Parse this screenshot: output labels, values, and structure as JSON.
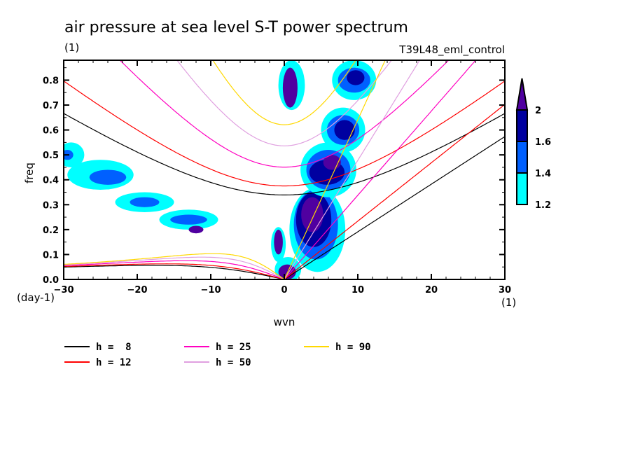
{
  "chart_data": {
    "type": "heatmap",
    "title": "air pressure at sea level S-T power spectrum",
    "units_label": "(1)",
    "run_label": "T39L48_eml_control",
    "xlabel": "wvn",
    "ylabel": "freq",
    "x_units": "(1)",
    "y_units": "(day-1)",
    "xlim": [
      -30,
      30
    ],
    "ylim": [
      0.0,
      0.88
    ],
    "xticks": [
      -30,
      -20,
      -10,
      0,
      10,
      20,
      30
    ],
    "xtick_labels": [
      "-30",
      "-20",
      "-10",
      "0",
      "10",
      "20",
      "30"
    ],
    "yticks": [
      0.0,
      0.1,
      0.2,
      0.3,
      0.4,
      0.5,
      0.6,
      0.7,
      0.8
    ],
    "ytick_labels": [
      "0.0",
      "0.1",
      "0.2",
      "0.3",
      "0.4",
      "0.5",
      "0.6",
      "0.7",
      "0.8"
    ],
    "colorbar": {
      "levels": [
        1.2,
        1.4,
        1.6,
        2
      ],
      "labels": [
        "1.2",
        "1.4",
        "1.6",
        "2"
      ],
      "colors": [
        "#00ffff",
        "#0060ff",
        "#0000a0",
        "#5000a0"
      ],
      "extend": "max"
    },
    "dispersion_curves": [
      {
        "name": "h =  8",
        "h": 8,
        "color": "#000000"
      },
      {
        "name": "h = 12",
        "h": 12,
        "color": "#ff0000"
      },
      {
        "name": "h = 25",
        "h": 25,
        "color": "#ff00c0"
      },
      {
        "name": "h = 50",
        "h": 50,
        "color": "#e0a0e0"
      },
      {
        "name": "h = 90",
        "h": 90,
        "color": "#ffd800"
      }
    ],
    "legend_placement": "bottom",
    "contour_regions": [
      {
        "level": 1.2,
        "x": 1.0,
        "y": 0.78,
        "rx": 1.8,
        "ry": 0.1
      },
      {
        "level": 2,
        "x": 0.8,
        "y": 0.77,
        "rx": 1.0,
        "ry": 0.08
      },
      {
        "level": 1.2,
        "x": 4.5,
        "y": 0.2,
        "rx": 3.8,
        "ry": 0.17
      },
      {
        "level": 1.4,
        "x": 4.3,
        "y": 0.22,
        "rx": 3.0,
        "ry": 0.14
      },
      {
        "level": 1.6,
        "x": 4.0,
        "y": 0.24,
        "rx": 2.4,
        "ry": 0.11
      },
      {
        "level": 2,
        "x": 3.8,
        "y": 0.26,
        "rx": 1.5,
        "ry": 0.07
      },
      {
        "level": 1.2,
        "x": 6.0,
        "y": 0.44,
        "rx": 3.8,
        "ry": 0.11
      },
      {
        "level": 1.4,
        "x": 6.0,
        "y": 0.44,
        "rx": 3.0,
        "ry": 0.08
      },
      {
        "level": 1.6,
        "x": 5.8,
        "y": 0.43,
        "rx": 2.4,
        "ry": 0.05
      },
      {
        "level": 2,
        "x": 6.5,
        "y": 0.47,
        "rx": 1.2,
        "ry": 0.03
      },
      {
        "level": 1.2,
        "x": 8.0,
        "y": 0.6,
        "rx": 3.0,
        "ry": 0.09
      },
      {
        "level": 1.4,
        "x": 8.0,
        "y": 0.6,
        "rx": 2.2,
        "ry": 0.06
      },
      {
        "level": 1.6,
        "x": 8.2,
        "y": 0.6,
        "rx": 1.4,
        "ry": 0.04
      },
      {
        "level": 1.2,
        "x": 9.5,
        "y": 0.8,
        "rx": 3.0,
        "ry": 0.08
      },
      {
        "level": 1.4,
        "x": 9.5,
        "y": 0.8,
        "rx": 2.2,
        "ry": 0.05
      },
      {
        "level": 1.6,
        "x": 9.7,
        "y": 0.81,
        "rx": 1.2,
        "ry": 0.03
      },
      {
        "level": 1.2,
        "x": 0.5,
        "y": 0.04,
        "rx": 1.8,
        "ry": 0.05
      },
      {
        "level": 2,
        "x": 0.4,
        "y": 0.03,
        "rx": 1.2,
        "ry": 0.03
      },
      {
        "level": 1.2,
        "x": -0.8,
        "y": 0.14,
        "rx": 1.0,
        "ry": 0.07
      },
      {
        "level": 2,
        "x": -0.8,
        "y": 0.15,
        "rx": 0.6,
        "ry": 0.05
      },
      {
        "level": 1.2,
        "x": -25,
        "y": 0.42,
        "rx": 4.5,
        "ry": 0.06
      },
      {
        "level": 1.4,
        "x": -24,
        "y": 0.41,
        "rx": 2.5,
        "ry": 0.03
      },
      {
        "level": 1.2,
        "x": -19,
        "y": 0.31,
        "rx": 4.0,
        "ry": 0.04
      },
      {
        "level": 1.4,
        "x": -19,
        "y": 0.31,
        "rx": 2.0,
        "ry": 0.02
      },
      {
        "level": 1.2,
        "x": -13,
        "y": 0.24,
        "rx": 4.0,
        "ry": 0.04
      },
      {
        "level": 1.4,
        "x": -13,
        "y": 0.24,
        "rx": 2.5,
        "ry": 0.02
      },
      {
        "level": 2,
        "x": -12,
        "y": 0.2,
        "rx": 1.0,
        "ry": 0.015
      },
      {
        "level": 1.2,
        "x": -29,
        "y": 0.5,
        "rx": 1.8,
        "ry": 0.05
      },
      {
        "level": 1.4,
        "x": -29.5,
        "y": 0.5,
        "rx": 0.8,
        "ry": 0.02
      }
    ]
  }
}
